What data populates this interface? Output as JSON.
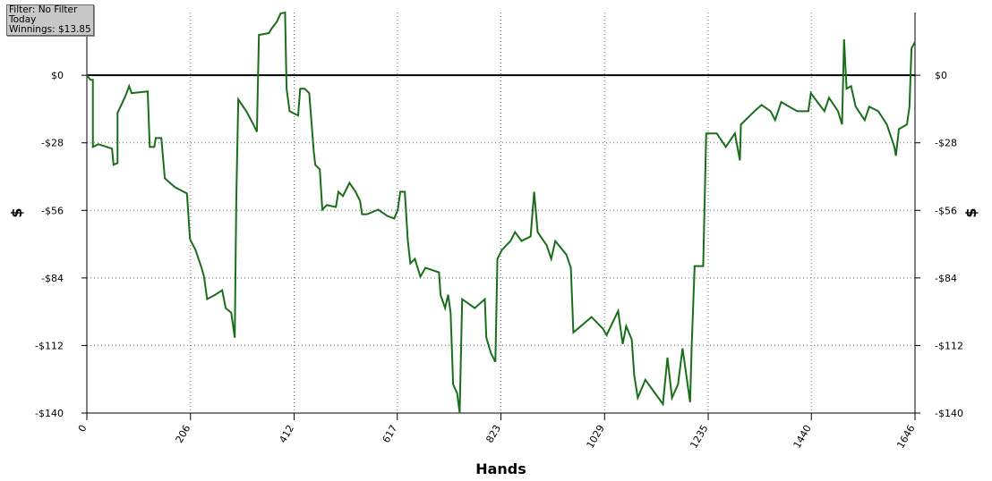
{
  "chart_data": {
    "type": "line",
    "annotations": [
      "Filter: No Filter",
      "Today",
      "Winnings: $13.85"
    ],
    "x_label": "Hands",
    "y_label": "$",
    "xlim": [
      0,
      1646
    ],
    "xticks": [
      0,
      206,
      412,
      617,
      823,
      1029,
      1235,
      1440,
      1646
    ],
    "ylim": [
      -140,
      26
    ],
    "yticks": [
      {
        "value": 0,
        "label": "$0"
      },
      {
        "value": -28,
        "label": "-$28"
      },
      {
        "value": -56,
        "label": "-$56"
      },
      {
        "value": -84,
        "label": "-$84"
      },
      {
        "value": -112,
        "label": "-$112"
      },
      {
        "value": -140,
        "label": "-$140"
      }
    ],
    "grid": true,
    "series": [
      {
        "color": "#1a6e1a",
        "x": [
          0,
          7,
          12,
          12,
          23,
          50,
          53,
          61,
          61,
          77,
          84,
          89,
          121,
          125,
          134,
          137,
          148,
          155,
          175,
          199,
          205,
          216,
          228,
          233,
          239,
          255,
          269,
          276,
          287,
          294,
          297,
          301,
          317,
          331,
          338,
          342,
          362,
          367,
          378,
          385,
          394,
          397,
          403,
          420,
          424,
          433,
          442,
          451,
          454,
          463,
          468,
          477,
          495,
          500,
          509,
          522,
          534,
          543,
          547,
          557,
          579,
          597,
          611,
          618,
          623,
          632,
          638,
          643,
          652,
          663,
          673,
          700,
          703,
          712,
          718,
          723,
          728,
          736,
          741,
          746,
          771,
          791,
          794,
          803,
          812,
          816,
          825,
          842,
          851,
          864,
          882,
          889,
          896,
          914,
          923,
          931,
          953,
          962,
          967,
          1003,
          1026,
          1033,
          1056,
          1065,
          1072,
          1083,
          1088,
          1095,
          1110,
          1136,
          1145,
          1154,
          1163,
          1175,
          1184,
          1199,
          1202,
          1208,
          1225,
          1231,
          1252,
          1270,
          1288,
          1298,
          1300,
          1327,
          1341,
          1359,
          1368,
          1380,
          1412,
          1434,
          1439,
          1452,
          1466,
          1475,
          1493,
          1501,
          1505,
          1510,
          1519,
          1528,
          1546,
          1555,
          1573,
          1590,
          1605,
          1608,
          1614,
          1630,
          1635,
          1639,
          1646
        ],
        "values": [
          0,
          -1.9,
          -1.9,
          -29.7,
          -28.6,
          -30.4,
          -37.1,
          -36.4,
          -15.6,
          -8.5,
          -4.5,
          -7.4,
          -6.7,
          -29.7,
          -29.7,
          -26.0,
          -26.0,
          -42.7,
          -46.4,
          -49.0,
          -67.9,
          -72.4,
          -79.8,
          -83.5,
          -92.8,
          -91.0,
          -89.1,
          -96.5,
          -98.4,
          -108.8,
          -52.0,
          -10.0,
          -14.9,
          -20.4,
          -23.4,
          16.7,
          17.5,
          19.3,
          22.3,
          25.6,
          26.0,
          -5.6,
          -14.9,
          -16.7,
          -5.6,
          -5.6,
          -7.4,
          -31.6,
          -37.1,
          -39.0,
          -55.7,
          -53.8,
          -54.6,
          -48.3,
          -50.1,
          -44.6,
          -48.3,
          -52.0,
          -57.6,
          -57.6,
          -55.7,
          -58.3,
          -59.4,
          -55.7,
          -48.3,
          -48.3,
          -68.7,
          -78.0,
          -76.1,
          -83.5,
          -79.8,
          -81.7,
          -91.0,
          -96.5,
          -91.0,
          -98.4,
          -128.1,
          -131.8,
          -140.0,
          -92.8,
          -96.5,
          -92.8,
          -108.8,
          -115.1,
          -118.8,
          -76.1,
          -72.4,
          -68.7,
          -65.0,
          -68.7,
          -66.8,
          -48.3,
          -65.0,
          -70.5,
          -76.1,
          -68.7,
          -74.3,
          -79.8,
          -106.6,
          -100.2,
          -105.1,
          -107.7,
          -97.7,
          -111.4,
          -104.0,
          -109.5,
          -124.4,
          -133.7,
          -126.2,
          -133.7,
          -136.3,
          -117.0,
          -133.7,
          -128.1,
          -113.2,
          -135.5,
          -113.2,
          -79.1,
          -79.1,
          -24.1,
          -24.1,
          -29.7,
          -24.1,
          -35.3,
          -20.4,
          -14.9,
          -12.3,
          -14.9,
          -18.6,
          -11.1,
          -14.9,
          -14.9,
          -7.4,
          -11.1,
          -14.9,
          -9.3,
          -14.9,
          -20.4,
          14.9,
          -5.6,
          -4.5,
          -13.0,
          -18.6,
          -13.0,
          -14.9,
          -20.4,
          -29.7,
          -33.4,
          -22.3,
          -20.4,
          -13.0,
          11.1,
          13.85
        ]
      }
    ]
  }
}
